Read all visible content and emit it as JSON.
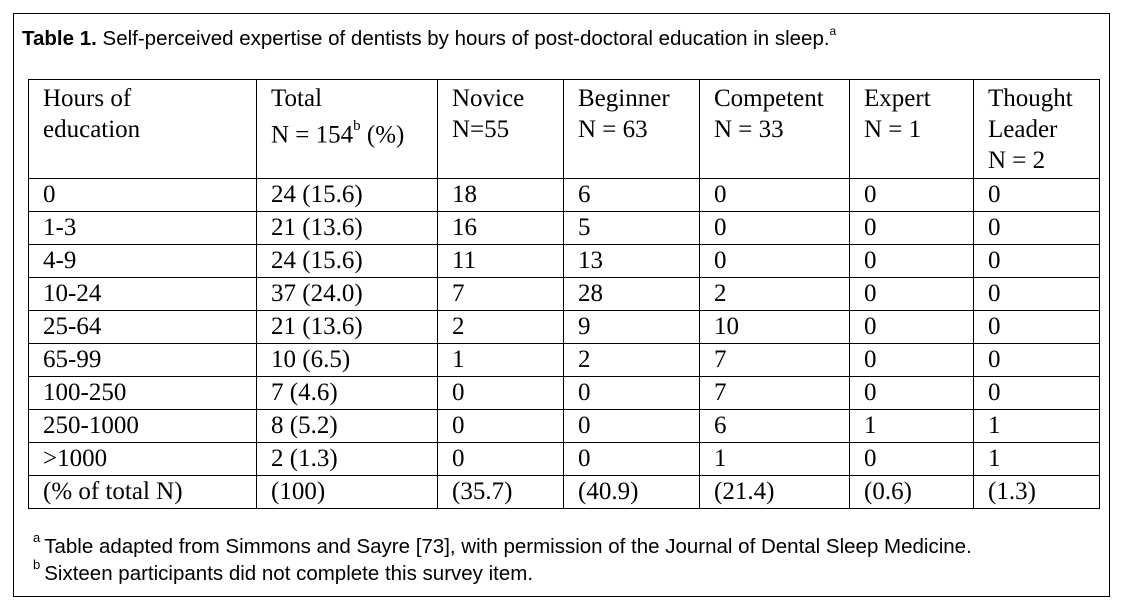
{
  "caption": {
    "label": "Table 1.",
    "text": " Self-perceived expertise of dentists by hours of post-doctoral education in sleep.",
    "marker": "a"
  },
  "columns": [
    {
      "line1": "Hours of",
      "line2": "education",
      "line3": ""
    },
    {
      "line1": "Total",
      "line2": "N = 154",
      "sup": "b",
      "line2_tail": " (%)",
      "line3": ""
    },
    {
      "line1": "Novice",
      "line2": "N=55",
      "line3": ""
    },
    {
      "line1": "Beginner",
      "line2": "N = 63",
      "line3": ""
    },
    {
      "line1": "Competent",
      "line2": "N = 33",
      "line3": ""
    },
    {
      "line1": "Expert",
      "line2": "N = 1",
      "line3": ""
    },
    {
      "line1": "Thought",
      "line2": "Leader",
      "line3": "N = 2"
    }
  ],
  "rows": [
    [
      "0",
      "24 (15.6)",
      "18",
      "6",
      "0",
      "0",
      "0"
    ],
    [
      "1-3",
      "21 (13.6)",
      "16",
      "5",
      "0",
      "0",
      "0"
    ],
    [
      "4-9",
      "24 (15.6)",
      "11",
      "13",
      "0",
      "0",
      "0"
    ],
    [
      "10-24",
      "37 (24.0)",
      "7",
      "28",
      "2",
      "0",
      "0"
    ],
    [
      "25-64",
      "21 (13.6)",
      "2",
      "9",
      "10",
      "0",
      "0"
    ],
    [
      "65-99",
      "10 (6.5)",
      "1",
      "2",
      "7",
      "0",
      "0"
    ],
    [
      "100-250",
      "7 (4.6)",
      "0",
      "0",
      "7",
      "0",
      "0"
    ],
    [
      "250-1000",
      "8 (5.2)",
      "0",
      "0",
      "6",
      "1",
      "1"
    ],
    [
      ">1000",
      "2 (1.3)",
      "0",
      "0",
      "1",
      "0",
      "1"
    ],
    [
      "(% of total N)",
      "(100)",
      "(35.7)",
      "(40.9)",
      "(21.4)",
      "(0.6)",
      "(1.3)"
    ]
  ],
  "footnotes": [
    {
      "marker": "a",
      "text": "Table adapted from Simmons and Sayre [73], with permission of the Journal of Dental Sleep Medicine."
    },
    {
      "marker": "b",
      "text": "Sixteen participants did not complete this survey item."
    }
  ]
}
